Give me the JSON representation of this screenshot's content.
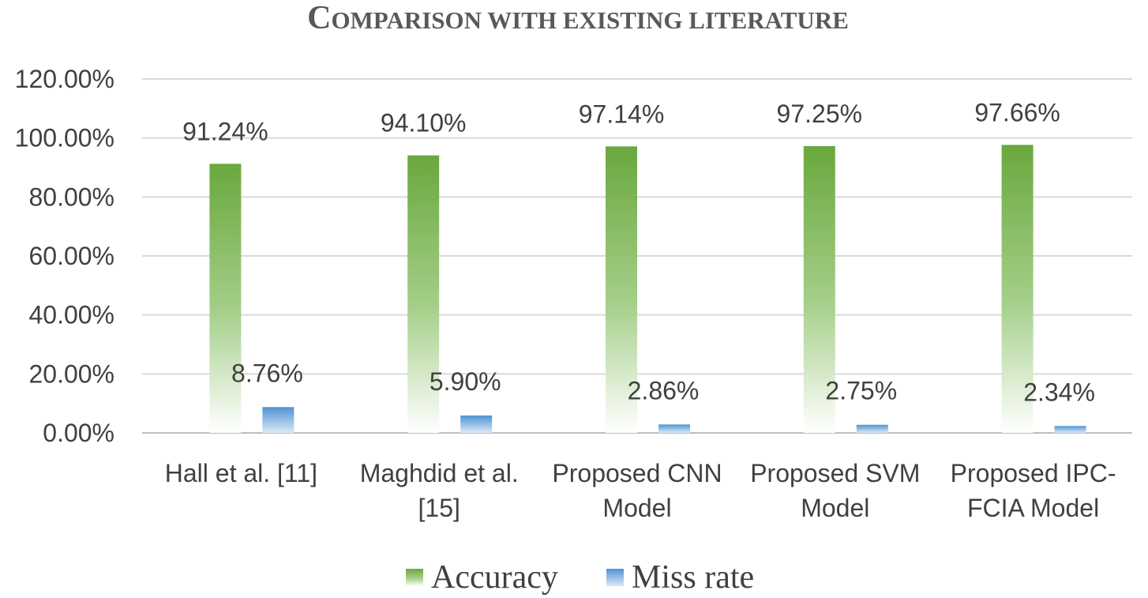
{
  "chart_data": {
    "type": "bar",
    "title": "Comparison with existing literature",
    "categories": [
      [
        "Hall et al. [11]"
      ],
      [
        "Maghdid et al.",
        "[15]"
      ],
      [
        "Proposed CNN",
        "Model"
      ],
      [
        "Proposed SVM",
        "Model"
      ],
      [
        "Proposed IPC-",
        "FCIA Model"
      ]
    ],
    "series": [
      {
        "name": "Accuracy",
        "values": [
          91.24,
          94.1,
          97.14,
          97.25,
          97.66
        ],
        "labels": [
          "91.24%",
          "94.10%",
          "97.14%",
          "97.25%",
          "97.66%"
        ],
        "color": "#70ad47"
      },
      {
        "name": "Miss rate",
        "values": [
          8.76,
          5.9,
          2.86,
          2.75,
          2.34
        ],
        "labels": [
          "8.76%",
          "5.90%",
          "2.86%",
          "2.75%",
          "2.34%"
        ],
        "color": "#5b9bd5"
      }
    ],
    "ylim": [
      0,
      120
    ],
    "yticks": [
      0,
      20,
      40,
      60,
      80,
      100,
      120
    ],
    "ytick_labels": [
      "0.00%",
      "20.00%",
      "40.00%",
      "60.00%",
      "80.00%",
      "100.00%",
      "120.00%"
    ],
    "grid": true,
    "legend_position": "bottom"
  }
}
